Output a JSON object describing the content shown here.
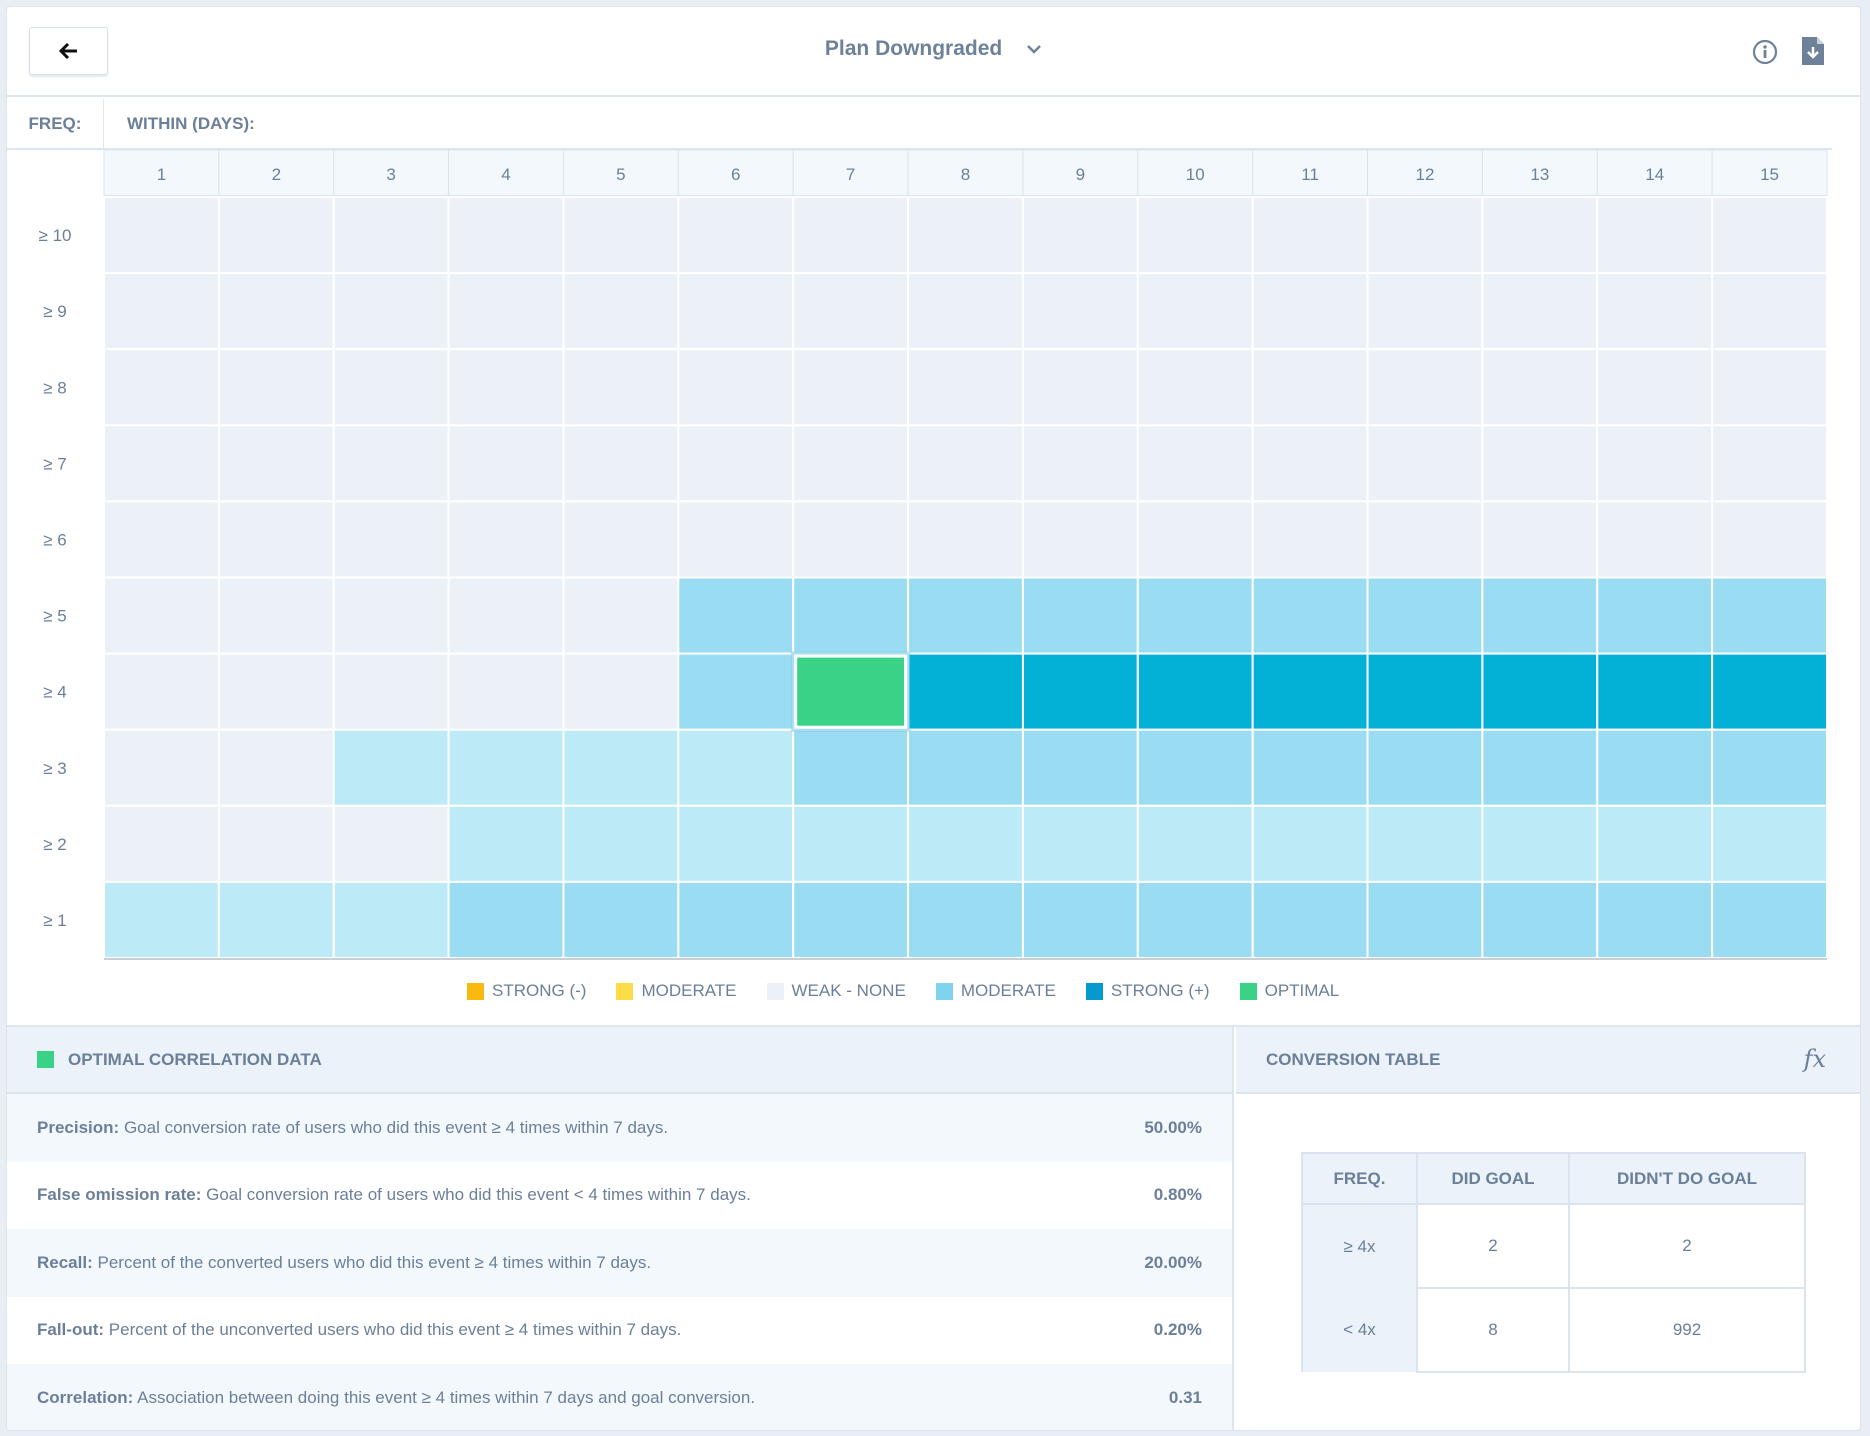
{
  "header": {
    "title": "Plan Downgraded",
    "back_icon": "arrow-left-icon",
    "info_icon": "info-icon",
    "download_icon": "file-download-icon"
  },
  "axis": {
    "freq_label": "FREQ:",
    "within_label": "WITHIN (DAYS):"
  },
  "chart_data": {
    "type": "heatmap",
    "x_label": "WITHIN (DAYS):",
    "y_label": "FREQ:",
    "x_categories": [
      "1",
      "2",
      "3",
      "4",
      "5",
      "6",
      "7",
      "8",
      "9",
      "10",
      "11",
      "12",
      "13",
      "14",
      "15"
    ],
    "y_categories": [
      "≥ 10",
      "≥ 9",
      "≥ 8",
      "≥ 7",
      "≥ 6",
      "≥ 5",
      "≥ 4",
      "≥ 3",
      "≥ 2",
      "≥ 1"
    ],
    "levels": {
      "W": "WEAK - NONE",
      "L": "MODERATE (light)",
      "M": "MODERATE",
      "S": "STRONG (+)",
      "O": "OPTIMAL"
    },
    "level_colors": {
      "W": "#ebf1f7",
      "L": "#bdeaf7",
      "M": "#9adcf1",
      "S": "#03b1d7",
      "O": "#3ad287"
    },
    "values": [
      [
        "W",
        "W",
        "W",
        "W",
        "W",
        "W",
        "W",
        "W",
        "W",
        "W",
        "W",
        "W",
        "W",
        "W",
        "W"
      ],
      [
        "W",
        "W",
        "W",
        "W",
        "W",
        "W",
        "W",
        "W",
        "W",
        "W",
        "W",
        "W",
        "W",
        "W",
        "W"
      ],
      [
        "W",
        "W",
        "W",
        "W",
        "W",
        "W",
        "W",
        "W",
        "W",
        "W",
        "W",
        "W",
        "W",
        "W",
        "W"
      ],
      [
        "W",
        "W",
        "W",
        "W",
        "W",
        "W",
        "W",
        "W",
        "W",
        "W",
        "W",
        "W",
        "W",
        "W",
        "W"
      ],
      [
        "W",
        "W",
        "W",
        "W",
        "W",
        "W",
        "W",
        "W",
        "W",
        "W",
        "W",
        "W",
        "W",
        "W",
        "W"
      ],
      [
        "W",
        "W",
        "W",
        "W",
        "W",
        "M",
        "M",
        "M",
        "M",
        "M",
        "M",
        "M",
        "M",
        "M",
        "M"
      ],
      [
        "W",
        "W",
        "W",
        "W",
        "W",
        "M",
        "O",
        "S",
        "S",
        "S",
        "S",
        "S",
        "S",
        "S",
        "S"
      ],
      [
        "W",
        "W",
        "L",
        "L",
        "L",
        "L",
        "M",
        "M",
        "M",
        "M",
        "M",
        "M",
        "M",
        "M",
        "M"
      ],
      [
        "W",
        "W",
        "W",
        "L",
        "L",
        "L",
        "L",
        "L",
        "L",
        "L",
        "L",
        "L",
        "L",
        "L",
        "L"
      ],
      [
        "L",
        "L",
        "L",
        "M",
        "M",
        "M",
        "M",
        "M",
        "M",
        "M",
        "M",
        "M",
        "M",
        "M",
        "M"
      ]
    ],
    "optimal": {
      "freq": "≥ 4",
      "days": "7"
    }
  },
  "legend": [
    {
      "label": "STRONG (-)",
      "color": "#f8b911"
    },
    {
      "label": "MODERATE",
      "color": "#fedc48"
    },
    {
      "label": "WEAK - NONE",
      "color": "#ebf1f7"
    },
    {
      "label": "MODERATE",
      "color": "#7fd3ee"
    },
    {
      "label": "STRONG (+)",
      "color": "#0599cc"
    },
    {
      "label": "OPTIMAL",
      "color": "#3ad287"
    }
  ],
  "optimal_panel": {
    "title": "OPTIMAL CORRELATION DATA",
    "metrics": [
      {
        "name": "Precision:",
        "desc": "Goal conversion rate of users who did this event ≥ 4 times within 7 days.",
        "value": "50.00%"
      },
      {
        "name": "False omission rate:",
        "desc": "Goal conversion rate of users who did this event < 4 times within 7 days.",
        "value": "0.80%"
      },
      {
        "name": "Recall:",
        "desc": "Percent of the converted users who did this event ≥ 4 times within 7 days.",
        "value": "20.00%"
      },
      {
        "name": "Fall-out:",
        "desc": "Percent of the unconverted users who did this event ≥ 4 times within 7 days.",
        "value": "0.20%"
      },
      {
        "name": "Correlation:",
        "desc": "Association between doing this event ≥ 4 times within 7 days and goal conversion.",
        "value": "0.31"
      }
    ]
  },
  "conversion": {
    "title": "CONVERSION TABLE",
    "fx_icon": "fx-formula-icon",
    "fx": "fx",
    "headers": [
      "FREQ.",
      "DID GOAL",
      "DIDN'T DO GOAL"
    ],
    "rows": [
      [
        "≥ 4x",
        "2",
        "2"
      ],
      [
        "< 4x",
        "8",
        "992"
      ]
    ]
  }
}
